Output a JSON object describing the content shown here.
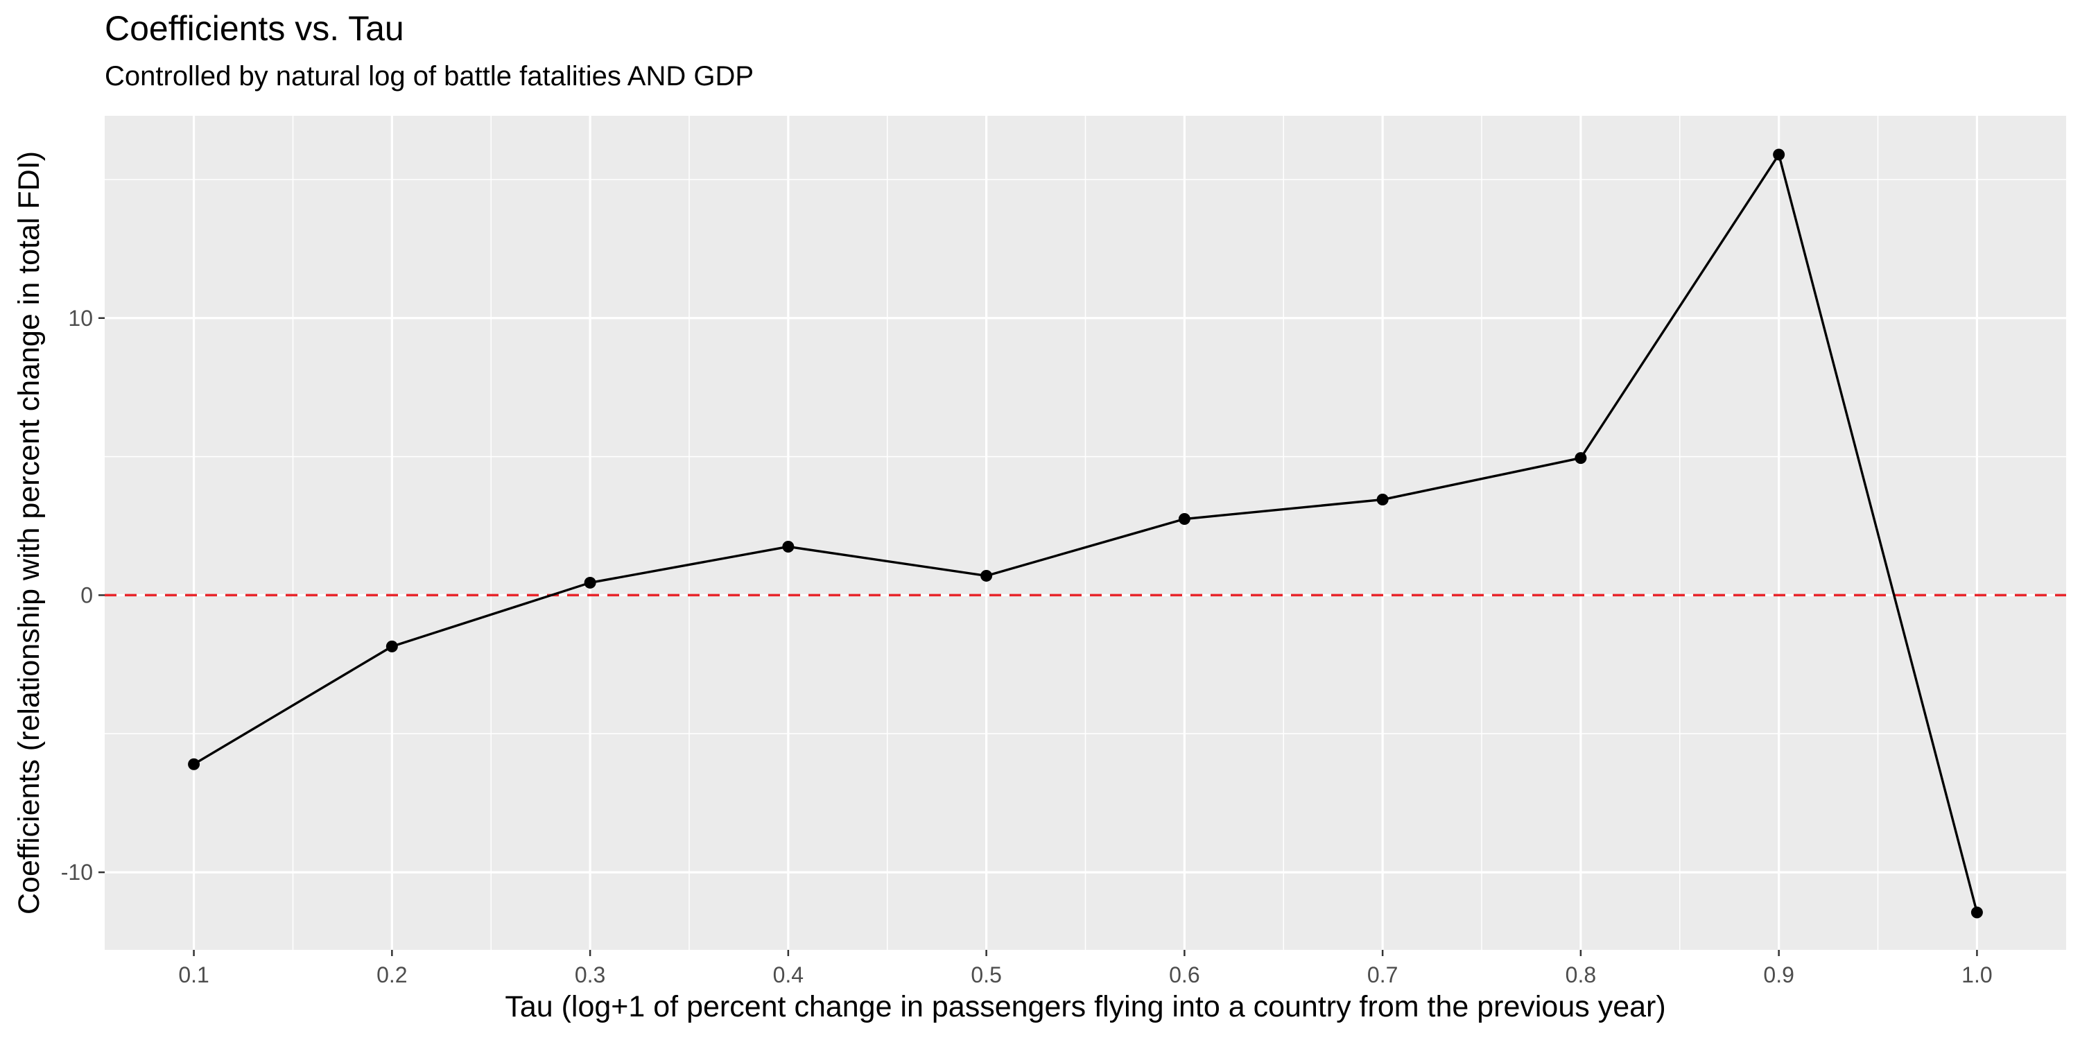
{
  "chart_data": {
    "type": "line",
    "title": "Coefficients vs. Tau",
    "subtitle": "Controlled by natural log of battle fatalities AND GDP",
    "xlabel": "Tau (log+1 of percent change in passengers flying into a country from the previous year)",
    "ylabel": "Coefficients (relationship with percent change in total FDI)",
    "x": [
      0.1,
      0.2,
      0.3,
      0.4,
      0.5,
      0.6,
      0.7,
      0.8,
      0.9,
      1.0
    ],
    "series": [
      {
        "values": [
          -6.1,
          -1.85,
          0.45,
          1.75,
          0.7,
          2.75,
          3.45,
          4.95,
          15.9,
          -11.45
        ]
      }
    ],
    "x_ticks": [
      "0.1",
      "0.2",
      "0.3",
      "0.4",
      "0.5",
      "0.6",
      "0.7",
      "0.8",
      "0.9",
      "1.0"
    ],
    "y_ticks": [
      "-10",
      "0",
      "10"
    ],
    "xlim": [
      0.055,
      1.045
    ],
    "ylim": [
      -12.8,
      17.3
    ],
    "reference_line": {
      "y": 0,
      "color": "#e8262b",
      "style": "dashed"
    },
    "line_color": "#000000",
    "panel_background": "#ebebeb",
    "grid": true,
    "legend": "none"
  }
}
